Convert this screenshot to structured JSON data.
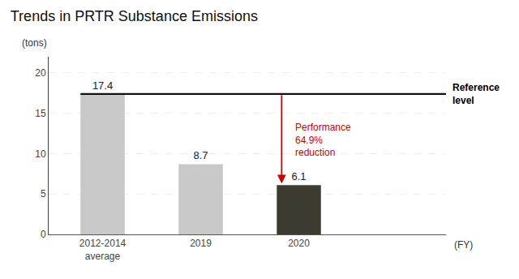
{
  "chart_data": {
    "type": "bar",
    "title": "Trends in PRTR Substance Emissions",
    "xlabel": "(FY)",
    "ylabel": "(tons)",
    "categories": [
      "2012-2014\naverage",
      "2019",
      "2020"
    ],
    "values": [
      17.4,
      8.7,
      6.1
    ],
    "colors": [
      "#c8c8c8",
      "#c8c8c8",
      "#3d3b2f"
    ],
    "data_labels": true,
    "reference_line": {
      "value": 17.4,
      "label": "Reference\nlevel",
      "color": "#111111"
    },
    "annotations": [
      {
        "text": "Performance\n64.9%\nreduction",
        "color": "#cc0000"
      }
    ],
    "ylim": [
      0,
      22
    ],
    "yticks": [
      0,
      5,
      10,
      15,
      20
    ],
    "grid": true
  }
}
